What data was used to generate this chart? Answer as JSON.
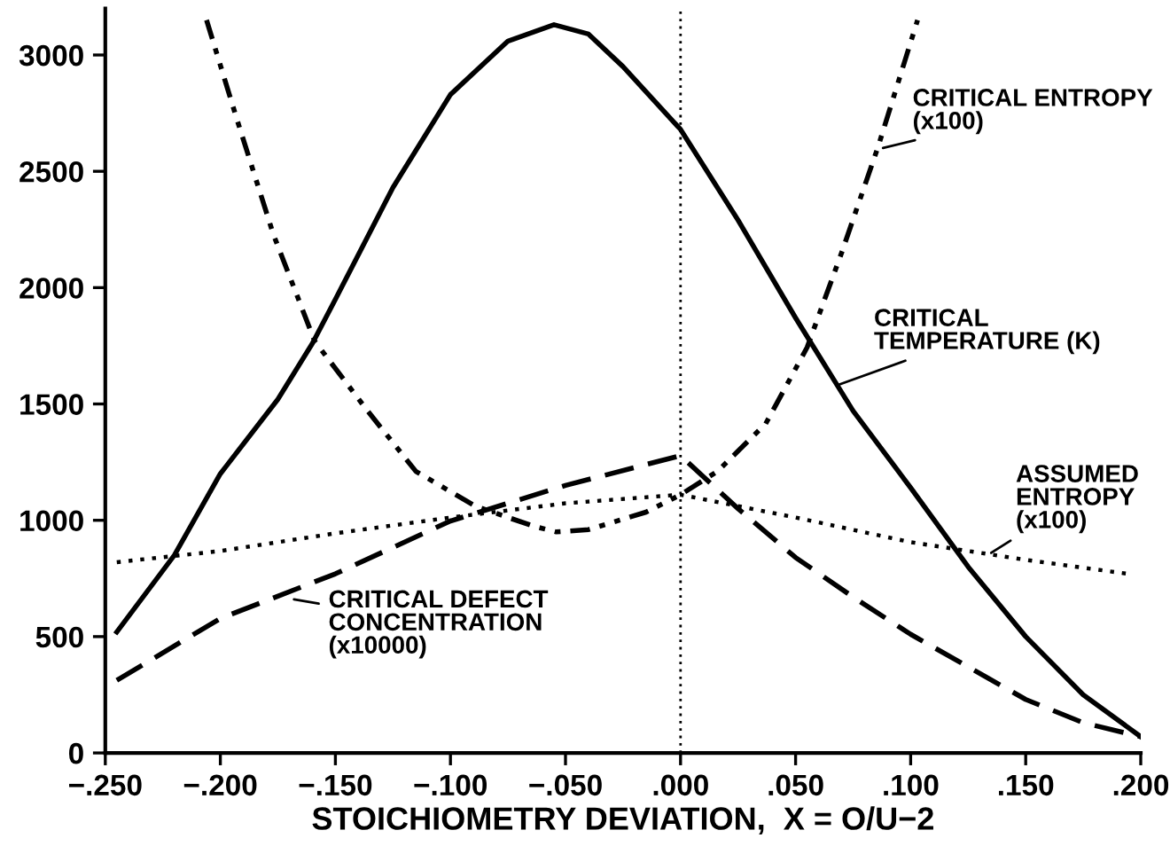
{
  "chart_data": {
    "type": "line",
    "xlabel": "STOICHIOMETRY DEVIATION,  X = O/U−2",
    "xlim": [
      -0.25,
      0.2
    ],
    "xticks": [
      {
        "value": -0.25,
        "label": "−.250"
      },
      {
        "value": -0.2,
        "label": "−.200"
      },
      {
        "value": -0.15,
        "label": "−.150"
      },
      {
        "value": -0.1,
        "label": "−.100"
      },
      {
        "value": -0.05,
        "label": "−.050"
      },
      {
        "value": 0,
        "label": ".000"
      },
      {
        "value": 0.05,
        "label": ".050"
      },
      {
        "value": 0.1,
        "label": ".100"
      },
      {
        "value": 0.15,
        "label": ".150"
      },
      {
        "value": 0.2,
        "label": ".200"
      }
    ],
    "ylim": [
      0,
      3200
    ],
    "yticks": [
      0,
      500,
      1000,
      1500,
      2000,
      2500,
      3000
    ],
    "grid": false,
    "legend": false,
    "series": [
      {
        "color": "#000000",
        "line_style": "solid",
        "x": [
          -0.245,
          -0.22,
          -0.2,
          -0.175,
          -0.16,
          -0.15,
          -0.125,
          -0.1,
          -0.075,
          -0.055,
          -0.04,
          -0.025,
          0,
          0.025,
          0.05,
          0.075,
          0.1,
          0.125,
          0.15,
          0.175,
          0.2
        ],
        "values": [
          520,
          850,
          1200,
          1520,
          1760,
          1950,
          2430,
          2830,
          3060,
          3130,
          3090,
          2950,
          2680,
          2290,
          1870,
          1470,
          1140,
          800,
          500,
          250,
          70
        ]
      },
      {
        "color": "#000000",
        "line_style": "dashdot",
        "x": [
          -0.206,
          -0.193,
          -0.177,
          -0.159,
          -0.136,
          -0.115,
          -0.089,
          -0.064,
          -0.054,
          -0.04,
          -0.015,
          0.0,
          0.016,
          0.037,
          0.055,
          0.07,
          0.086,
          0.103
        ],
        "values": [
          3150,
          2730,
          2230,
          1770,
          1470,
          1210,
          1060,
          975,
          950,
          960,
          1035,
          1110,
          1210,
          1415,
          1743,
          2150,
          2610,
          3150
        ]
      },
      {
        "color": "#000000",
        "line_style": "dashed",
        "x": [
          -0.245,
          -0.2,
          -0.15,
          -0.1,
          -0.05,
          0,
          0.025,
          0.05,
          0.075,
          0.1,
          0.125,
          0.15,
          0.175,
          0.2
        ],
        "values": [
          312,
          578,
          770,
          997,
          1150,
          1278,
          1050,
          840,
          670,
          510,
          370,
          230,
          130,
          70
        ]
      },
      {
        "color": "#000000",
        "line_style": "dotted",
        "x": [
          -0.245,
          -0.2,
          -0.15,
          -0.1,
          -0.05,
          0,
          0.05,
          0.1,
          0.15,
          0.195
        ],
        "values": [
          820,
          868,
          944,
          1012,
          1073,
          1110,
          1012,
          906,
          830,
          769
        ]
      }
    ],
    "ref_lines": [
      {
        "axis": "x",
        "value": 0,
        "color": "#000000",
        "line_style": "dotted"
      }
    ],
    "annotations": [
      {
        "text": "CRITICAL ENTROPY\n(x100)",
        "x": 0.088,
        "y": 2600
      },
      {
        "text": "CRITICAL\nTEMPERATURE (K)",
        "x": 0.068,
        "y": 1580
      },
      {
        "text": "ASSUMED\nENTROPY\n(x100)",
        "x": 0.135,
        "y": 860
      },
      {
        "text": "CRITICAL DEFECT\nCONCENTRATION\n(x10000)",
        "x": -0.168,
        "y": 660
      }
    ]
  }
}
